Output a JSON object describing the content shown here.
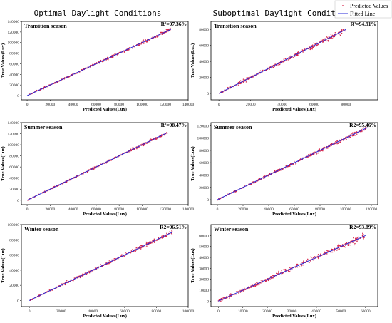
{
  "figure": {
    "column_titles": [
      "Optimal Daylight Conditions",
      "Suboptimal Daylight Conditions"
    ],
    "legend": {
      "predicted_label": "Predicted Values",
      "fitted_label": "Fitted Line",
      "placement": "top-right"
    }
  },
  "colors": {
    "points": "#d6234a",
    "line": "#2a2ad8",
    "frame": "#000000"
  },
  "chart_data": [
    {
      "type": "scatter",
      "title": "Transition season",
      "condition": "Optimal Daylight Conditions",
      "r2": "R²=97.36%",
      "xlabel": "Predicted Values(Lux)",
      "ylabel": "True Values(Lux)",
      "xlim": [
        -5000,
        140000
      ],
      "ylim": [
        -8000,
        140000
      ],
      "xticks": [
        0,
        20000,
        40000,
        60000,
        80000,
        100000,
        120000,
        140000
      ],
      "yticks": [
        0,
        20000,
        40000,
        60000,
        80000,
        100000,
        120000,
        140000
      ],
      "fit": {
        "x": [
          0,
          125000
        ],
        "y": [
          0,
          125000
        ]
      },
      "data_max": 125000,
      "noise": 0.025
    },
    {
      "type": "scatter",
      "title": "Transition season",
      "condition": "Suboptimal Daylight Conditions",
      "r2": "R²=94.91%",
      "xlabel": "Predicted Values(Lux)",
      "ylabel": "True Values(Lux)",
      "xlim": [
        -5000,
        100000
      ],
      "ylim": [
        -8000,
        90000
      ],
      "xticks": [
        0,
        20000,
        40000,
        60000,
        80000
      ],
      "yticks": [
        0,
        20000,
        40000,
        60000,
        80000
      ],
      "fit": {
        "x": [
          0,
          80000
        ],
        "y": [
          0,
          80000
        ]
      },
      "data_max": 80000,
      "noise": 0.04
    },
    {
      "type": "scatter",
      "title": "Summer season",
      "condition": "Optimal Daylight Conditions",
      "r2": "R²=98.47%",
      "xlabel": "Predicted Values(Lux)",
      "ylabel": "True Values(Lux)",
      "xlim": [
        -5000,
        140000
      ],
      "ylim": [
        -8000,
        140000
      ],
      "xticks": [
        0,
        20000,
        40000,
        60000,
        80000,
        100000,
        120000,
        140000
      ],
      "yticks": [
        0,
        20000,
        40000,
        60000,
        80000,
        100000,
        120000,
        140000
      ],
      "fit": {
        "x": [
          0,
          122000
        ],
        "y": [
          0,
          122000
        ]
      },
      "data_max": 122000,
      "noise": 0.02
    },
    {
      "type": "scatter",
      "title": "Summer season",
      "condition": "Suboptimal Daylight Conditions",
      "r2": "R2=95.46%",
      "xlabel": "Predicted Values(Lux)",
      "ylabel": "True Values(Lux)",
      "xlim": [
        -5000,
        125000
      ],
      "ylim": [
        -8000,
        125000
      ],
      "xticks": [
        0,
        20000,
        40000,
        60000,
        80000,
        100000,
        120000
      ],
      "yticks": [
        0,
        20000,
        40000,
        60000,
        80000,
        100000,
        120000
      ],
      "fit": {
        "x": [
          0,
          117000
        ],
        "y": [
          0,
          117000
        ]
      },
      "data_max": 117000,
      "noise": 0.03
    },
    {
      "type": "scatter",
      "title": "Winter season",
      "condition": "Optimal Daylight Conditions",
      "r2": "R2=96.51%",
      "xlabel": "Predicted Values(Lux)",
      "ylabel": "True Values(Lux)",
      "xlim": [
        -5000,
        100000
      ],
      "ylim": [
        -8000,
        100000
      ],
      "xticks": [
        0,
        20000,
        40000,
        60000,
        80000,
        100000
      ],
      "yticks": [
        0,
        20000,
        40000,
        60000,
        80000,
        100000
      ],
      "fit": {
        "x": [
          0,
          90000
        ],
        "y": [
          0,
          90000
        ]
      },
      "data_max": 90000,
      "noise": 0.03
    },
    {
      "type": "scatter",
      "title": "Winter season",
      "condition": "Suboptimal Daylight Conditions",
      "r2": "R2=93.89%",
      "xlabel": "Predicted Values(Lux)",
      "ylabel": "True Values(Lux)",
      "xlim": [
        -3000,
        65000
      ],
      "ylim": [
        -5000,
        70000
      ],
      "xticks": [
        0,
        10000,
        20000,
        30000,
        40000,
        50000,
        60000
      ],
      "yticks": [
        0,
        10000,
        20000,
        30000,
        40000,
        50000,
        60000
      ],
      "fit": {
        "x": [
          0,
          60000
        ],
        "y": [
          0,
          60000
        ]
      },
      "data_max": 60000,
      "noise": 0.05
    }
  ]
}
